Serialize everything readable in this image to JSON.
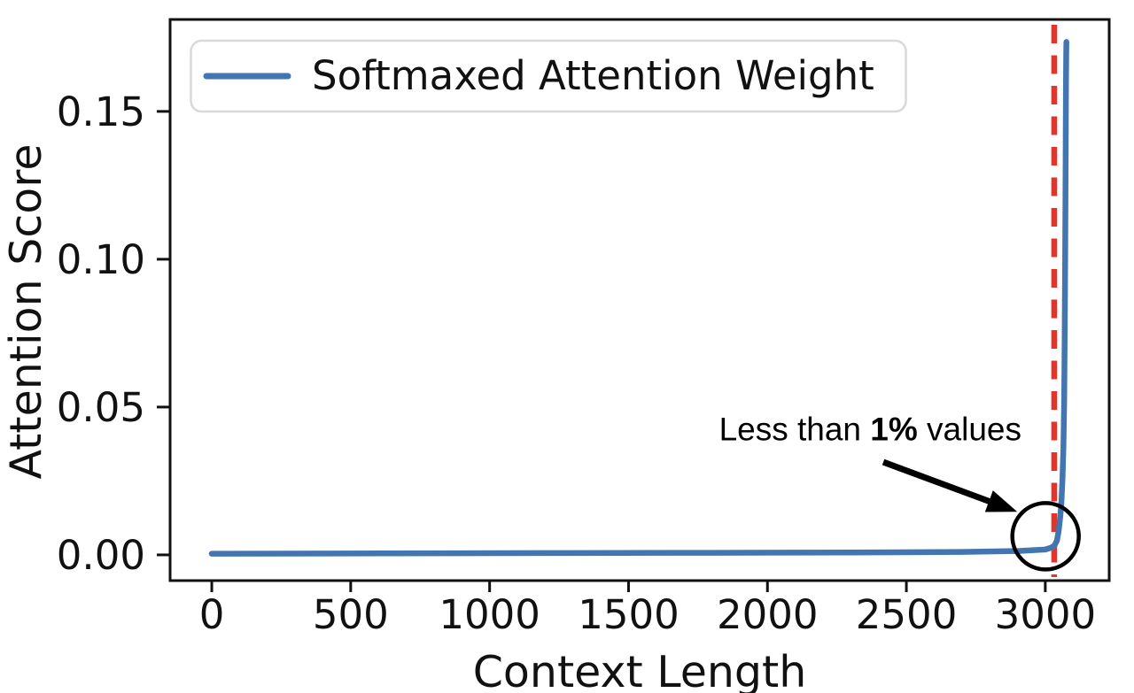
{
  "chart_data": {
    "type": "line",
    "title": "",
    "xlabel": "Context Length",
    "ylabel": "Attention Score",
    "grid": false,
    "xlim": [
      -150,
      3230
    ],
    "ylim": [
      -0.0087,
      0.1811
    ],
    "x_ticks": [
      0,
      500,
      1000,
      1500,
      2000,
      2500,
      3000
    ],
    "x_tick_labels": [
      "0",
      "500",
      "1000",
      "1500",
      "2000",
      "2500",
      "3000"
    ],
    "y_ticks": [
      0.0,
      0.05,
      0.1,
      0.15
    ],
    "y_tick_labels": [
      "0.00",
      "0.05",
      "0.10",
      "0.15"
    ],
    "legend": {
      "position": "upper left",
      "entries": [
        {
          "label": "Softmaxed Attention Weight",
          "color": "#4376B0"
        }
      ]
    },
    "series": [
      {
        "name": "Softmaxed Attention Weight",
        "color": "#4376B0",
        "points": [
          [
            0,
            0.0004
          ],
          [
            600,
            0.0005
          ],
          [
            1200,
            0.0006
          ],
          [
            1800,
            0.0007
          ],
          [
            2300,
            0.0008
          ],
          [
            2700,
            0.001
          ],
          [
            2900,
            0.0013
          ],
          [
            3000,
            0.0018
          ],
          [
            3020,
            0.0024
          ],
          [
            3032,
            0.003
          ],
          [
            3042,
            0.0048
          ],
          [
            3048,
            0.008
          ],
          [
            3054,
            0.013
          ],
          [
            3058,
            0.018
          ],
          [
            3062,
            0.026
          ],
          [
            3065,
            0.036
          ],
          [
            3068,
            0.052
          ],
          [
            3070,
            0.075
          ],
          [
            3071.5,
            0.1
          ],
          [
            3073,
            0.13
          ],
          [
            3074.5,
            0.158
          ],
          [
            3075.5,
            0.17
          ],
          [
            3076,
            0.1735
          ]
        ]
      }
    ],
    "vline": {
      "x": 3032,
      "color": "#E3342B",
      "style": "dashed"
    },
    "annotation": {
      "full_text": "Less than 1% values",
      "text_parts": [
        "Less than ",
        "1%",
        " values"
      ],
      "bold_part_index": 1,
      "color": "#000000",
      "text_anchor": [
        2370,
        0.0426
      ],
      "arrow_from": [
        2417,
        0.0314
      ],
      "arrow_to": [
        2899,
        0.0146
      ],
      "circle_center": [
        3001,
        0.0063
      ],
      "circle_radius_px": 37.5
    }
  }
}
